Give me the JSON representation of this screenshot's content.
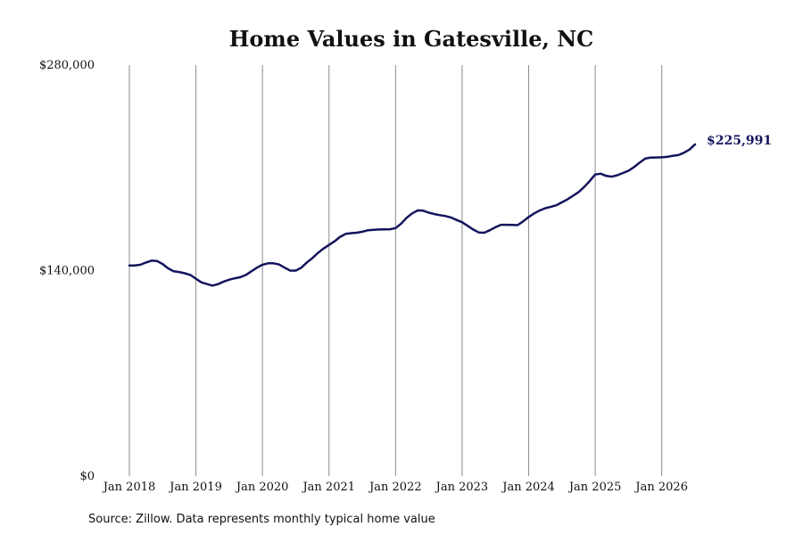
{
  "chart_data": {
    "type": "line",
    "title": "Home Values in Gatesville, NC",
    "source_note": "Source: Zillow. Data represents monthly typical home value",
    "line_color": "#14145c",
    "grid": "vertical",
    "ylim": [
      0,
      280000
    ],
    "xlim": [
      "2018-01",
      "2026-07"
    ],
    "y_ticks": [
      {
        "value": 0,
        "label": "$0"
      },
      {
        "value": 140000,
        "label": "$140,000"
      },
      {
        "value": 280000,
        "label": "$280,000"
      }
    ],
    "x_ticks": [
      {
        "date": "2018-01",
        "label": "Jan 2018"
      },
      {
        "date": "2019-01",
        "label": "Jan 2019"
      },
      {
        "date": "2020-01",
        "label": "Jan 2020"
      },
      {
        "date": "2021-01",
        "label": "Jan 2021"
      },
      {
        "date": "2022-01",
        "label": "Jan 2022"
      },
      {
        "date": "2023-01",
        "label": "Jan 2023"
      },
      {
        "date": "2024-01",
        "label": "Jan 2024"
      },
      {
        "date": "2025-01",
        "label": "Jan 2025"
      },
      {
        "date": "2026-01",
        "label": "Jan 2026"
      }
    ],
    "end_label": "$225,991",
    "series": [
      {
        "x": [
          "2018-01",
          "2018-02",
          "2018-03",
          "2018-04",
          "2018-05",
          "2018-06",
          "2018-07",
          "2018-08",
          "2018-09",
          "2018-10",
          "2018-11",
          "2018-12",
          "2019-01",
          "2019-02",
          "2019-03",
          "2019-04",
          "2019-05",
          "2019-06",
          "2019-07",
          "2019-08",
          "2019-09",
          "2019-10",
          "2019-11",
          "2019-12",
          "2020-01",
          "2020-02",
          "2020-03",
          "2020-04",
          "2020-05",
          "2020-06",
          "2020-07",
          "2020-08",
          "2020-09",
          "2020-10",
          "2020-11",
          "2020-12",
          "2021-01",
          "2021-02",
          "2021-03",
          "2021-04",
          "2021-05",
          "2021-06",
          "2021-07",
          "2021-08",
          "2021-09",
          "2021-10",
          "2021-11",
          "2021-12",
          "2022-01",
          "2022-02",
          "2022-03",
          "2022-04",
          "2022-05",
          "2022-06",
          "2022-07",
          "2022-08",
          "2022-09",
          "2022-10",
          "2022-11",
          "2022-12",
          "2023-01",
          "2023-02",
          "2023-03",
          "2023-04",
          "2023-05",
          "2023-06",
          "2023-07",
          "2023-08",
          "2023-09",
          "2023-10",
          "2023-11",
          "2023-12",
          "2024-01",
          "2024-02",
          "2024-03",
          "2024-04",
          "2024-05",
          "2024-06",
          "2024-07",
          "2024-08",
          "2024-09",
          "2024-10",
          "2024-11",
          "2024-12",
          "2025-01",
          "2025-02",
          "2025-03",
          "2025-04",
          "2025-05",
          "2025-06",
          "2025-07",
          "2025-08",
          "2025-09",
          "2025-10",
          "2025-11",
          "2025-12",
          "2026-01",
          "2026-02",
          "2026-03",
          "2026-04",
          "2026-05",
          "2026-06",
          "2026-07"
        ],
        "values": [
          143500,
          143500,
          144000,
          145500,
          146800,
          146500,
          144500,
          141500,
          139500,
          139000,
          138200,
          137000,
          134500,
          132000,
          130800,
          129800,
          130800,
          132500,
          133800,
          134800,
          135500,
          137000,
          139500,
          142000,
          144000,
          145000,
          145000,
          144200,
          142000,
          140000,
          140000,
          142000,
          145500,
          148500,
          152000,
          155000,
          157500,
          160000,
          163000,
          165000,
          165500,
          165800,
          166500,
          167500,
          167800,
          168000,
          168100,
          168200,
          169000,
          172000,
          176000,
          179000,
          181000,
          180800,
          179500,
          178500,
          177800,
          177200,
          176200,
          174500,
          173000,
          170500,
          168000,
          166000,
          165800,
          167500,
          169500,
          171200,
          171200,
          171100,
          171000,
          173500,
          176500,
          179000,
          181000,
          182500,
          183500,
          184500,
          186500,
          188500,
          191000,
          193500,
          197000,
          201000,
          205500,
          206000,
          204500,
          204000,
          205000,
          206500,
          208000,
          210500,
          213500,
          216300,
          217000,
          217100,
          217200,
          217500,
          218200,
          218700,
          220300,
          222500,
          225991
        ]
      }
    ]
  }
}
